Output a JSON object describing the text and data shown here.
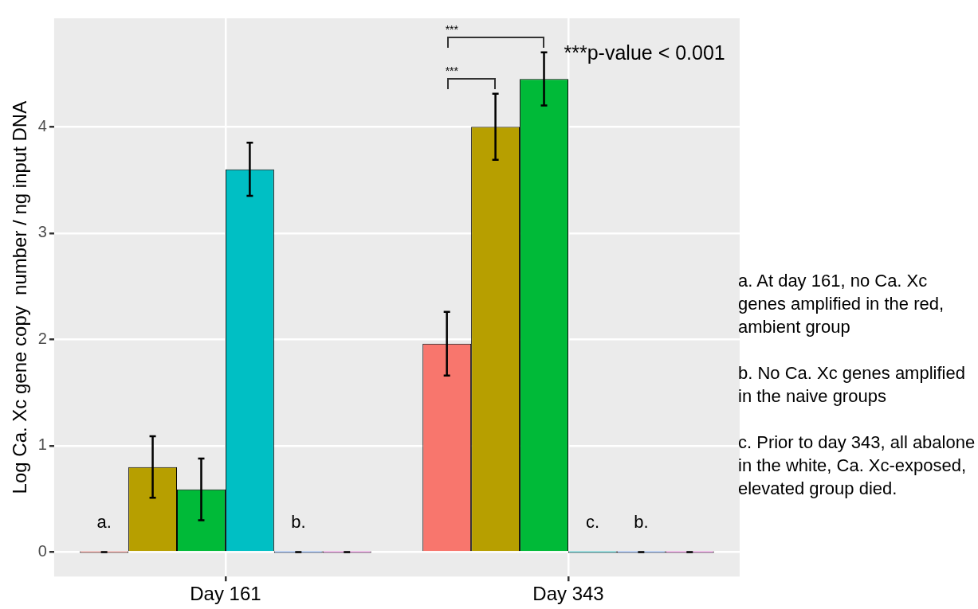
{
  "chart_data": {
    "type": "bar",
    "ylabel": "Log Ca. Xc gene copy  number / ng input DNA",
    "categories": [
      "Day 161",
      "Day 343"
    ],
    "series": [
      {
        "color": "#f8766d",
        "values": [
          0,
          1.96
        ],
        "errors": [
          0,
          0.3
        ]
      },
      {
        "color": "#b79f00",
        "values": [
          0.8,
          4.0
        ],
        "errors": [
          0.29,
          0.31
        ]
      },
      {
        "color": "#00ba38",
        "values": [
          0.59,
          4.45
        ],
        "errors": [
          0.29,
          0.25
        ]
      },
      {
        "color": "#00bfc4",
        "values": [
          3.6,
          0
        ],
        "errors": [
          0.25,
          null
        ]
      },
      {
        "color": "#619cff",
        "values": [
          0,
          0
        ],
        "errors": [
          0,
          0
        ]
      },
      {
        "color": "#f564e3",
        "values": [
          0,
          0
        ],
        "errors": [
          0,
          0
        ]
      }
    ],
    "ylim": [
      -0.23,
      5.02
    ],
    "yticks": [
      0,
      1,
      2,
      3,
      4
    ],
    "grid": true,
    "legend": false,
    "annotations": [
      "a.",
      "b.",
      "c.",
      "b.",
      "***",
      "***",
      "***p-value < 0.001",
      "a. At day 161, no Ca. Xc genes amplified in the red, ambient group",
      "b. No Ca. Xc genes amplified in the naive groups",
      "c. Prior to day 343, all abalone in the white, Ca. Xc-exposed, elevated group died."
    ]
  }
}
